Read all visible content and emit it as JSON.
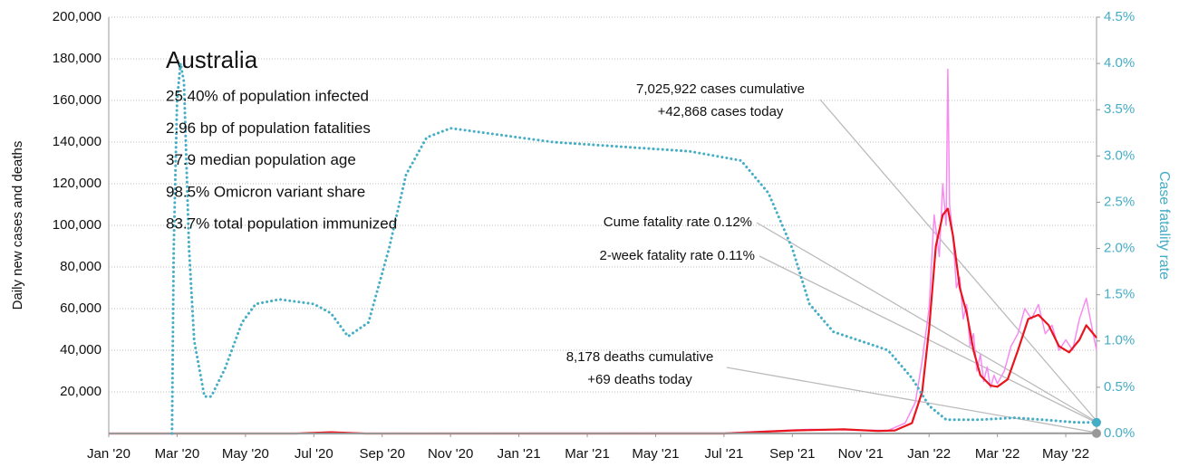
{
  "chart_data": {
    "type": "line",
    "ylabel": "Daily new cases and deaths",
    "y2label": "Case fatality rate",
    "xlim": [
      0,
      28.9
    ],
    "xticks": [
      {
        "value": 0,
        "label": "Jan '20"
      },
      {
        "value": 2,
        "label": "Mar '20"
      },
      {
        "value": 4,
        "label": "May '20"
      },
      {
        "value": 6,
        "label": "Jul '20"
      },
      {
        "value": 8,
        "label": "Sep '20"
      },
      {
        "value": 10,
        "label": "Nov '20"
      },
      {
        "value": 12,
        "label": "Jan '21"
      },
      {
        "value": 14,
        "label": "Mar '21"
      },
      {
        "value": 16,
        "label": "May '21"
      },
      {
        "value": 18,
        "label": "Jul '21"
      },
      {
        "value": 20,
        "label": "Sep '21"
      },
      {
        "value": 22,
        "label": "Nov '21"
      },
      {
        "value": 24,
        "label": "Jan '22"
      },
      {
        "value": 26,
        "label": "Mar '22"
      },
      {
        "value": 28,
        "label": "May '22"
      }
    ],
    "ylim": [
      0,
      200000
    ],
    "yticks": [
      {
        "value": 20000,
        "label": "20,000"
      },
      {
        "value": 40000,
        "label": "40,000"
      },
      {
        "value": 60000,
        "label": "60,000"
      },
      {
        "value": 80000,
        "label": "80,000"
      },
      {
        "value": 100000,
        "label": "100,000"
      },
      {
        "value": 120000,
        "label": "120,000"
      },
      {
        "value": 140000,
        "label": "140,000"
      },
      {
        "value": 160000,
        "label": "160,000"
      },
      {
        "value": 180000,
        "label": "180,000"
      },
      {
        "value": 200000,
        "label": "200,000"
      }
    ],
    "y2lim": [
      0,
      4.5
    ],
    "y2ticks": [
      {
        "value": 0,
        "label": "0.0%"
      },
      {
        "value": 0.5,
        "label": "0.5%"
      },
      {
        "value": 1,
        "label": "1.0%"
      },
      {
        "value": 1.5,
        "label": "1.5%"
      },
      {
        "value": 2,
        "label": "2.0%"
      },
      {
        "value": 2.5,
        "label": "2.5%"
      },
      {
        "value": 3,
        "label": "3.0%"
      },
      {
        "value": 3.5,
        "label": "3.5%"
      },
      {
        "value": 4,
        "label": "4.0%"
      },
      {
        "value": 4.5,
        "label": "4.5%"
      }
    ],
    "grid": true,
    "series": [
      {
        "color": "#f78cf0",
        "width": 1.5,
        "x": [
          0,
          18,
          20.5,
          22.8,
          23.3,
          23.6,
          23.8,
          24.0,
          24.15,
          24.3,
          24.4,
          24.5,
          24.55,
          24.6,
          24.7,
          24.8,
          24.9,
          25.0,
          25.1,
          25.2,
          25.3,
          25.4,
          25.5,
          25.6,
          25.7,
          25.8,
          25.9,
          26.0,
          26.2,
          26.4,
          26.6,
          26.8,
          27.0,
          27.2,
          27.4,
          27.6,
          27.8,
          28.0,
          28.2,
          28.4,
          28.6,
          28.8,
          28.9
        ],
        "values": [
          0,
          200,
          2000,
          1500,
          5000,
          15000,
          35000,
          60000,
          105000,
          85000,
          120000,
          100000,
          175000,
          110000,
          95000,
          70000,
          75000,
          55000,
          62000,
          42000,
          48000,
          30000,
          38000,
          25000,
          32000,
          22000,
          28000,
          24000,
          30000,
          42000,
          48000,
          60000,
          55000,
          62000,
          48000,
          52000,
          40000,
          45000,
          40000,
          55000,
          65000,
          48000,
          40000
        ]
      },
      {
        "color": "#e8141e",
        "width": 2.2,
        "x": [
          0,
          5.5,
          6.5,
          7.5,
          10,
          18,
          20,
          21.5,
          22.5,
          23.0,
          23.5,
          23.8,
          24.0,
          24.2,
          24.4,
          24.55,
          24.7,
          24.9,
          25.1,
          25.3,
          25.5,
          25.8,
          26.0,
          26.3,
          26.6,
          26.9,
          27.2,
          27.5,
          27.8,
          28.1,
          28.4,
          28.6,
          28.9
        ],
        "values": [
          0,
          0,
          600,
          0,
          0,
          0,
          1500,
          2000,
          1200,
          1500,
          5000,
          20000,
          50000,
          90000,
          105000,
          108000,
          95000,
          70000,
          58000,
          40000,
          28000,
          23000,
          22500,
          26000,
          40000,
          55000,
          57000,
          52000,
          42000,
          39000,
          45000,
          52000,
          46000
        ]
      },
      {
        "color": "#999999",
        "width": 2,
        "end_marker": true,
        "x": [
          0,
          28.9
        ],
        "values": [
          0,
          69
        ]
      },
      {
        "color": "#45adc4",
        "width": 3,
        "dotted": true,
        "axis": "y2",
        "end_marker": true,
        "x": [
          1.85,
          1.9,
          2.0,
          2.1,
          2.2,
          2.35,
          2.5,
          2.6,
          2.8,
          3.0,
          3.4,
          3.9,
          4.3,
          5.0,
          6.0,
          6.5,
          7.0,
          7.6,
          8.2,
          8.7,
          9.3,
          10.0,
          11,
          13,
          15,
          17,
          18.5,
          19.3,
          20.0,
          20.5,
          21.2,
          22.0,
          22.8,
          23.5,
          24.0,
          24.5,
          25.5,
          26.5,
          27.3,
          28.3,
          28.9
        ],
        "values": [
          0,
          2.0,
          3.6,
          4.0,
          3.8,
          2.0,
          1.0,
          0.8,
          0.4,
          0.4,
          0.7,
          1.2,
          1.4,
          1.45,
          1.4,
          1.3,
          1.05,
          1.2,
          2.0,
          2.8,
          3.2,
          3.3,
          3.25,
          3.15,
          3.1,
          3.05,
          2.95,
          2.6,
          2.0,
          1.4,
          1.1,
          1.0,
          0.9,
          0.6,
          0.3,
          0.15,
          0.15,
          0.17,
          0.15,
          0.12,
          0.12
        ]
      }
    ],
    "info": {
      "title": "Australia",
      "lines": [
        "25.40% of population infected",
        "2.96 bp of population fatalities",
        "37.9 median population age",
        "98.5% Omicron variant share",
        "83.7% total population immunized"
      ]
    },
    "annotations": [
      "7,025,922 cases cumulative",
      "+42,868 cases today",
      "Cume fatality rate 0.12%",
      "2-week fatality rate 0.11%",
      "8,178 deaths cumulative",
      "+69 deaths today"
    ]
  }
}
